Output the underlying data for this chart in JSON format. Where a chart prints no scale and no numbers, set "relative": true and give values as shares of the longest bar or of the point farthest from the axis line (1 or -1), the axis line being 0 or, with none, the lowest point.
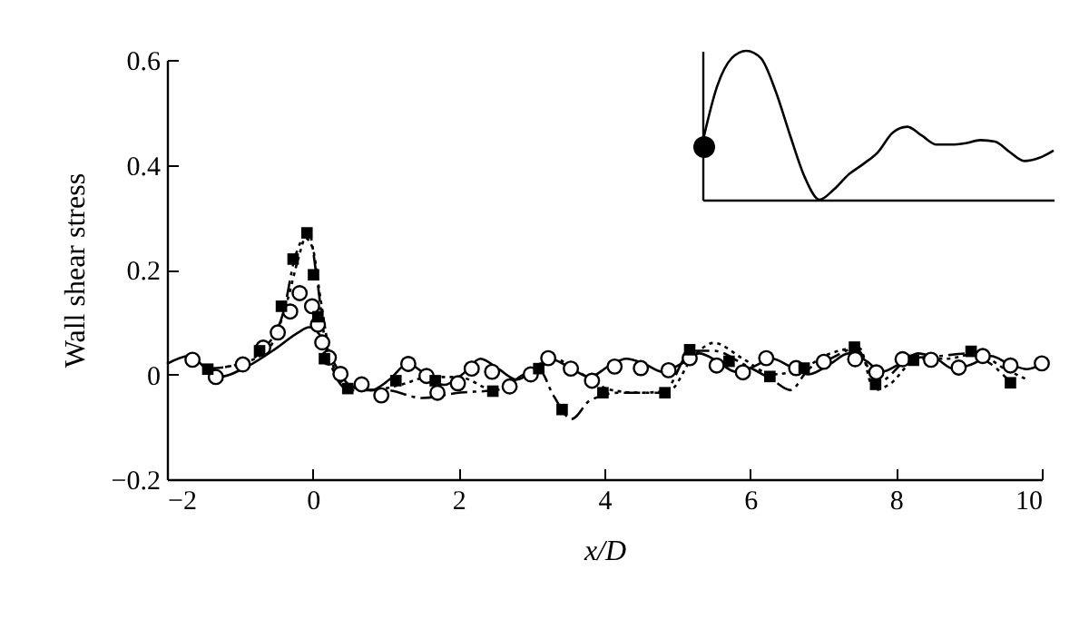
{
  "chart_data": [
    {
      "type": "line",
      "xlabel": "x/D",
      "ylabel": "Wall shear stress",
      "xlim": [
        -2,
        10
      ],
      "xticks": [
        {
          "value": -2,
          "label": "−2"
        },
        0,
        2,
        4,
        6,
        8,
        10
      ],
      "ylim": [
        -0.2,
        0.6
      ],
      "yticks": [
        {
          "value": -0.2,
          "label": "−0.2"
        },
        {
          "value": 0,
          "label": "0"
        },
        0.2,
        0.4,
        0.6
      ],
      "series": [
        {
          "line_style": "solid",
          "color": "#000000",
          "x": [
            -2,
            -1.7,
            -1.3,
            -0.9,
            -0.5,
            -0.2,
            -0.05,
            0.1,
            0.3,
            0.5,
            0.8,
            1.05,
            1.3,
            1.55,
            1.8,
            2.05,
            2.3,
            2.55,
            2.8,
            3.05,
            3.25,
            3.5,
            3.8,
            4.05,
            4.3,
            4.55,
            4.8,
            5.05,
            5.3,
            5.55,
            5.8,
            6.05,
            6.3,
            6.55,
            6.8,
            7.1,
            7.35,
            7.6,
            7.8,
            8.05,
            8.3,
            8.55,
            8.8,
            9.05,
            9.3,
            9.55,
            9.8,
            10
          ],
          "values": [
            0.02,
            0.035,
            -0.005,
            0.015,
            0.05,
            0.08,
            0.09,
            0.075,
            0.02,
            -0.02,
            -0.03,
            -0.01,
            0.02,
            0.0,
            -0.02,
            0.0,
            0.03,
            0.01,
            -0.01,
            0.01,
            0.03,
            0.015,
            -0.005,
            0.015,
            0.03,
            0.02,
            0.005,
            0.02,
            0.04,
            0.025,
            0.005,
            0.015,
            0.03,
            0.015,
            0.0,
            0.02,
            0.04,
            0.025,
            0.005,
            0.02,
            0.04,
            0.03,
            0.01,
            0.02,
            0.035,
            0.02,
            0.01,
            0.02
          ]
        },
        {
          "line_style": "dashed",
          "color": "#000000",
          "x": [
            -1.5,
            -1.0,
            -0.7,
            -0.4,
            -0.25,
            -0.05,
            0.05,
            0.2,
            0.5,
            1.0,
            1.5,
            2.0,
            2.5,
            3.1,
            3.3,
            3.55,
            3.8,
            4.2,
            4.8,
            5.2,
            5.5,
            5.9,
            6.3,
            6.55,
            6.8,
            7.1,
            7.45,
            7.75,
            8.2,
            8.6,
            9.0,
            9.3,
            9.6
          ],
          "values": [
            0.01,
            0.02,
            0.045,
            0.12,
            0.22,
            0.27,
            0.19,
            0.04,
            -0.03,
            -0.03,
            -0.045,
            -0.035,
            -0.03,
            0.01,
            -0.04,
            -0.085,
            -0.05,
            -0.035,
            -0.035,
            0.045,
            0.045,
            0.02,
            -0.01,
            -0.03,
            0.01,
            0.03,
            0.05,
            -0.015,
            0.03,
            0.035,
            0.04,
            0.02,
            -0.02
          ]
        },
        {
          "line_style": "dotted",
          "color": "#000000",
          "x": [
            -1.5,
            -1.0,
            -0.6,
            -0.35,
            -0.2,
            -0.1,
            0.0,
            0.1,
            0.25,
            0.45,
            0.8,
            1.2,
            1.6,
            2.0,
            2.5,
            2.9,
            3.3,
            3.7,
            4.1,
            4.5,
            4.9,
            5.2,
            5.5,
            5.9,
            6.3,
            6.7,
            7.1,
            7.5,
            7.7,
            7.9,
            8.3,
            8.7,
            9.1,
            9.5,
            9.8
          ],
          "values": [
            0.01,
            0.02,
            0.05,
            0.14,
            0.22,
            0.26,
            0.24,
            0.15,
            0.03,
            -0.02,
            -0.03,
            -0.02,
            -0.005,
            -0.005,
            -0.03,
            0.0,
            0.03,
            0.0,
            -0.03,
            -0.035,
            -0.03,
            0.03,
            0.06,
            0.03,
            0.0,
            0.01,
            0.04,
            0.05,
            -0.03,
            -0.02,
            0.03,
            0.03,
            0.04,
            0.01,
            -0.01
          ]
        },
        {
          "type": "scatter",
          "marker": "circle",
          "color": "#000000",
          "x": [
            -1.65,
            -1.33,
            -0.96,
            -0.68,
            -0.48,
            -0.31,
            -0.18,
            -0.01,
            0.07,
            0.13,
            0.22,
            0.38,
            0.67,
            0.94,
            1.31,
            1.56,
            1.71,
            1.99,
            2.18,
            2.46,
            2.7,
            2.99,
            3.23,
            3.54,
            3.83,
            4.14,
            4.5,
            4.88,
            5.17,
            5.54,
            5.9,
            6.22,
            6.63,
            7.01,
            7.44,
            7.73,
            8.09,
            8.48,
            8.86,
            9.19,
            9.57,
            10.0
          ],
          "values": [
            0.028,
            -0.005,
            0.019,
            0.051,
            0.08,
            0.12,
            0.155,
            0.13,
            0.095,
            0.061,
            0.032,
            0.001,
            -0.019,
            -0.04,
            0.02,
            -0.003,
            -0.035,
            -0.017,
            0.011,
            0.005,
            -0.023,
            0,
            0.031,
            0.011,
            -0.012,
            0.015,
            0.012,
            0.008,
            0.031,
            0.017,
            0.004,
            0.031,
            0.012,
            0.024,
            0.029,
            0.004,
            0.029,
            0.028,
            0.013,
            0.035,
            0.017,
            0.021
          ]
        },
        {
          "type": "scatter",
          "marker": "square",
          "color": "#000000",
          "x": [
            -1.44,
            -0.73,
            -0.43,
            -0.27,
            -0.08,
            0.01,
            0.07,
            0.16,
            0.48,
            1.14,
            1.68,
            2.47,
            3.1,
            3.42,
            3.98,
            4.83,
            5.17,
            5.71,
            6.27,
            6.74,
            7.43,
            7.72,
            8.24,
            9.03,
            9.57
          ],
          "values": [
            0.01,
            0.045,
            0.13,
            0.22,
            0.27,
            0.19,
            0.11,
            0.03,
            -0.027,
            -0.012,
            -0.012,
            -0.032,
            0.011,
            -0.067,
            -0.035,
            -0.035,
            0.047,
            0.025,
            -0.004,
            0.012,
            0.052,
            -0.019,
            0.027,
            0.044,
            -0.016
          ]
        }
      ]
    },
    {
      "type": "line",
      "relative": true,
      "categories": [
        null,
        null,
        null,
        null,
        null,
        null,
        null,
        null,
        null,
        null,
        null,
        null,
        null,
        null,
        null,
        null,
        null,
        null,
        null,
        null,
        null,
        null,
        null,
        null,
        null
      ],
      "series": [
        {
          "color": "#000000",
          "values": [
            0.38,
            0.76,
            0.95,
            1.0,
            0.95,
            0.73,
            0.43,
            0.15,
            0,
            0.07,
            0.17,
            0.24,
            0.32,
            0.45,
            0.49,
            0.43,
            0.37,
            0.37,
            0.38,
            0.4,
            0.39,
            0.32,
            0.26,
            0.28,
            0.33
          ]
        }
      ]
    }
  ]
}
